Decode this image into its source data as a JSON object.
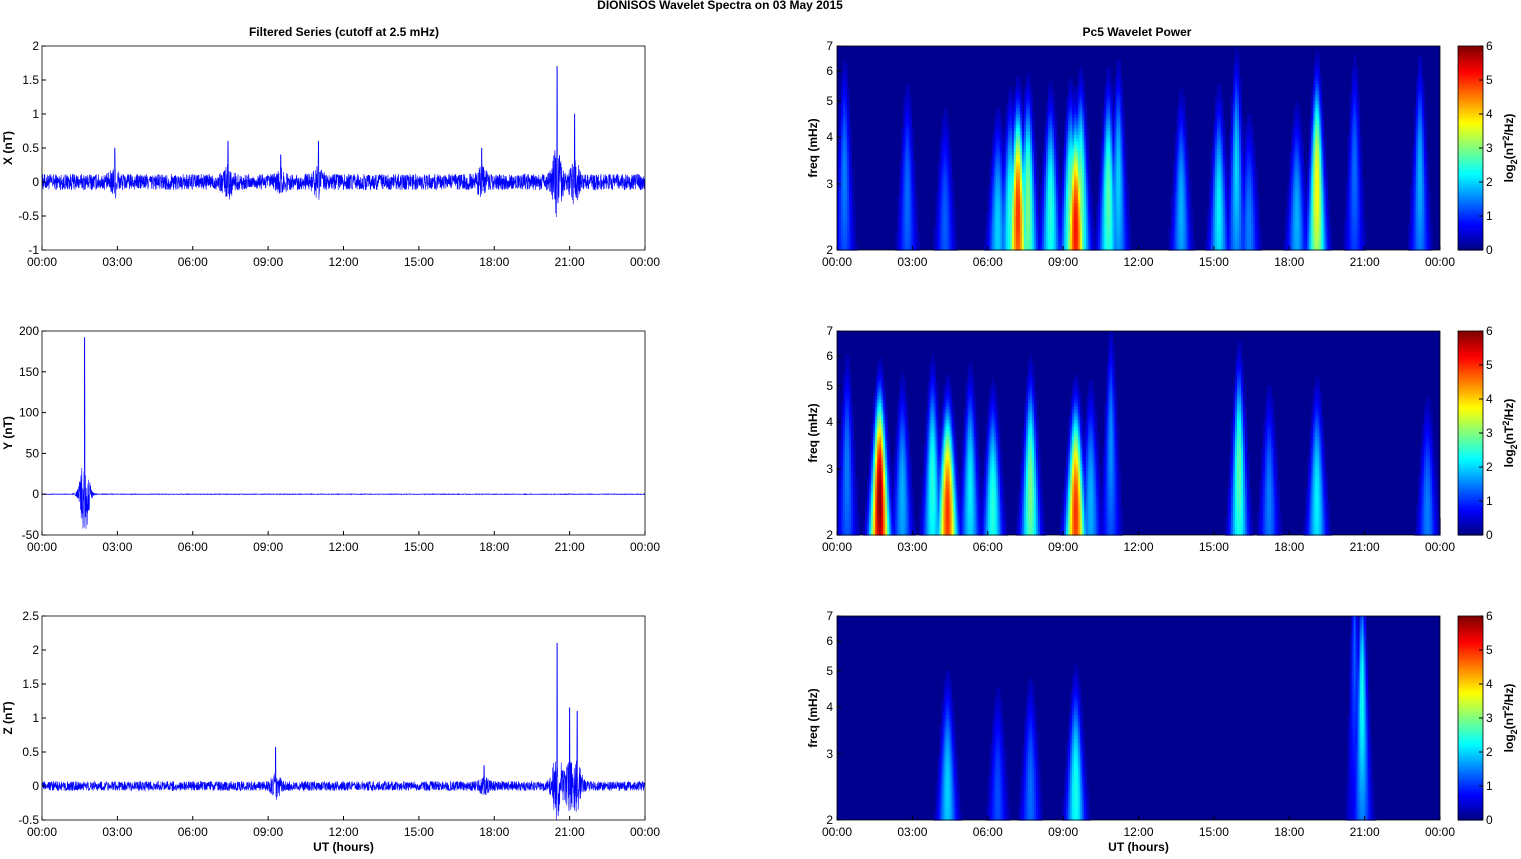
{
  "figure_title": "DIONISOS Wavelet Spectra on 03 May       2015",
  "left_title": "Filtered Series (cutoff at 2.5 mHz)",
  "right_title": "Pc5 Wavelet Power",
  "x_axis_label": "UT (hours)",
  "time_ticks": [
    "00:00",
    "03:00",
    "06:00",
    "09:00",
    "12:00",
    "15:00",
    "18:00",
    "21:00",
    "00:00"
  ],
  "freq_ylabel": "freq (mHz)",
  "freq_ticks": [
    "2",
    "3",
    "4",
    "5",
    "6",
    "7"
  ],
  "colorbar_label_prefix": "log",
  "colorbar_label_sub": "2",
  "colorbar_label_mid": "(nT",
  "colorbar_label_sup": "2",
  "colorbar_label_suffix": "/Hz)",
  "colorbar_ticks": [
    "0",
    "1",
    "2",
    "3",
    "4",
    "5",
    "6"
  ],
  "colors": {
    "trace": "#0000ff",
    "background": "#ffffff",
    "colormap": "jet",
    "colormap_floor": "#00008f"
  },
  "chart_data": [
    {
      "type": "line",
      "id": "x",
      "ylabel": "X (nT)",
      "ylim": [
        -1,
        2
      ],
      "yticks": [
        "-1",
        "-0.5",
        "0",
        "0.5",
        "1",
        "1.5",
        "2"
      ],
      "xlim_hours": [
        0,
        24
      ],
      "noise_amplitude_nT": 0.12,
      "activity_bursts": [
        {
          "t": 2.9,
          "amp": 0.5
        },
        {
          "t": 7.4,
          "amp": 0.6
        },
        {
          "t": 9.5,
          "amp": 0.4
        },
        {
          "t": 11.0,
          "amp": 0.6
        },
        {
          "t": 17.5,
          "amp": 0.5
        },
        {
          "t": 20.5,
          "amp": 1.7
        },
        {
          "t": 21.2,
          "amp": 1.0
        }
      ]
    },
    {
      "type": "line",
      "id": "y",
      "ylabel": "Y (nT)",
      "ylim": [
        -50,
        200
      ],
      "yticks": [
        "-50",
        "0",
        "50",
        "100",
        "150",
        "200"
      ],
      "xlim_hours": [
        0,
        24
      ],
      "noise_amplitude_nT": 0.4,
      "activity_bursts": [
        {
          "t": 1.7,
          "amp": 192
        }
      ]
    },
    {
      "type": "line",
      "id": "z",
      "ylabel": "Z (nT)",
      "ylim": [
        -0.5,
        2.5
      ],
      "yticks": [
        "-0.5",
        "0",
        "0.5",
        "1",
        "1.5",
        "2",
        "2.5"
      ],
      "xlim_hours": [
        0,
        24
      ],
      "noise_amplitude_nT": 0.07,
      "activity_bursts": [
        {
          "t": 9.3,
          "amp": 0.57
        },
        {
          "t": 17.6,
          "amp": 0.3
        },
        {
          "t": 20.5,
          "amp": 2.1
        },
        {
          "t": 21.0,
          "amp": 1.15
        },
        {
          "t": 21.3,
          "amp": 1.1
        }
      ]
    },
    {
      "type": "heatmap",
      "id": "x_power",
      "ylabel": "freq (mHz)",
      "scale_y": "log",
      "ylim_mHz": [
        2,
        7
      ],
      "xlim_hours": [
        0,
        24
      ],
      "zlim": [
        0,
        6
      ],
      "blobs": [
        {
          "t": 0.3,
          "f": 3.2,
          "p": 1.5
        },
        {
          "t": 2.8,
          "f": 2.8,
          "p": 1.4
        },
        {
          "t": 4.3,
          "f": 2.4,
          "p": 1.3
        },
        {
          "t": 6.4,
          "f": 2.3,
          "p": 2.0
        },
        {
          "t": 6.9,
          "f": 2.5,
          "p": 2.5
        },
        {
          "t": 7.2,
          "f": 2.5,
          "p": 5.0
        },
        {
          "t": 7.6,
          "f": 2.7,
          "p": 3.0
        },
        {
          "t": 8.5,
          "f": 2.6,
          "p": 2.5
        },
        {
          "t": 9.3,
          "f": 2.6,
          "p": 3.0
        },
        {
          "t": 9.5,
          "f": 2.3,
          "p": 5.2
        },
        {
          "t": 9.7,
          "f": 2.8,
          "p": 3.0
        },
        {
          "t": 10.8,
          "f": 2.8,
          "p": 2.8
        },
        {
          "t": 11.2,
          "f": 3.1,
          "p": 2.0
        },
        {
          "t": 13.7,
          "f": 2.6,
          "p": 1.8
        },
        {
          "t": 15.2,
          "f": 2.6,
          "p": 2.2
        },
        {
          "t": 15.9,
          "f": 3.3,
          "p": 2.0
        },
        {
          "t": 16.4,
          "f": 2.3,
          "p": 1.5
        },
        {
          "t": 18.3,
          "f": 2.4,
          "p": 1.8
        },
        {
          "t": 19.1,
          "f": 3.0,
          "p": 3.8
        },
        {
          "t": 20.6,
          "f": 3.3,
          "p": 1.4
        },
        {
          "t": 23.2,
          "f": 3.2,
          "p": 1.8
        }
      ]
    },
    {
      "type": "heatmap",
      "id": "y_power",
      "ylabel": "freq (mHz)",
      "scale_y": "log",
      "ylim_mHz": [
        2,
        7
      ],
      "xlim_hours": [
        0,
        24
      ],
      "zlim": [
        0,
        6
      ],
      "blobs": [
        {
          "t": 0.4,
          "f": 3.0,
          "p": 1.5
        },
        {
          "t": 1.7,
          "f": 2.5,
          "p": 6.0
        },
        {
          "t": 2.6,
          "f": 2.6,
          "p": 1.8
        },
        {
          "t": 3.8,
          "f": 2.8,
          "p": 2.5
        },
        {
          "t": 4.4,
          "f": 2.3,
          "p": 5.0
        },
        {
          "t": 5.3,
          "f": 2.7,
          "p": 2.2
        },
        {
          "t": 6.2,
          "f": 2.4,
          "p": 2.5
        },
        {
          "t": 7.7,
          "f": 2.7,
          "p": 3.0
        },
        {
          "t": 9.5,
          "f": 2.3,
          "p": 5.0
        },
        {
          "t": 10.1,
          "f": 2.5,
          "p": 1.8
        },
        {
          "t": 10.9,
          "f": 3.5,
          "p": 1.6
        },
        {
          "t": 16.0,
          "f": 3.0,
          "p": 2.8
        },
        {
          "t": 17.2,
          "f": 2.5,
          "p": 1.5
        },
        {
          "t": 19.1,
          "f": 2.5,
          "p": 2.2
        },
        {
          "t": 23.5,
          "f": 2.3,
          "p": 1.5
        }
      ]
    },
    {
      "type": "heatmap",
      "id": "z_power",
      "ylabel": "freq (mHz)",
      "scale_y": "log",
      "ylim_mHz": [
        2,
        7
      ],
      "xlim_hours": [
        0,
        24
      ],
      "zlim": [
        0,
        6
      ],
      "blobs": [
        {
          "t": 4.4,
          "f": 2.4,
          "p": 2.0
        },
        {
          "t": 6.4,
          "f": 2.3,
          "p": 1.2
        },
        {
          "t": 7.7,
          "f": 2.4,
          "p": 1.4
        },
        {
          "t": 9.5,
          "f": 2.4,
          "p": 2.4
        },
        {
          "t": 20.9,
          "f": 4.4,
          "p": 2.4
        },
        {
          "t": 20.6,
          "f": 5.8,
          "p": 1.3
        }
      ]
    }
  ]
}
